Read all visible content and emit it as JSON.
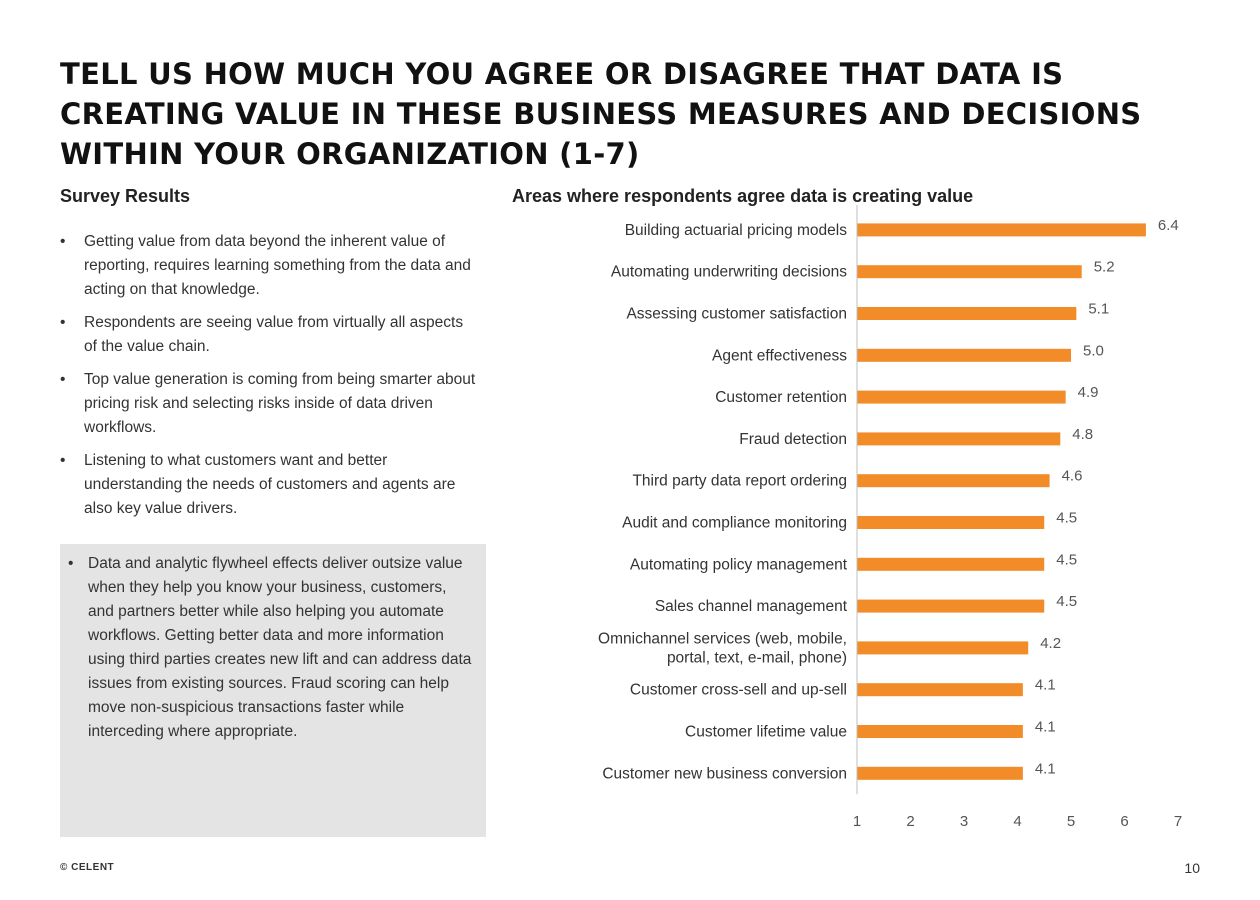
{
  "title": "TELL US HOW MUCH YOU AGREE OR DISAGREE THAT DATA IS CREATING VALUE IN THESE BUSINESS MEASURES AND DECISIONS WITHIN YOUR ORGANIZATION (1-7)",
  "survey": {
    "heading": "Survey Results",
    "bullets": [
      "Getting value from data beyond the inherent value of reporting, requires learning something from the data and acting on that knowledge.",
      "Respondents are seeing value from virtually all aspects of the value chain.",
      "Top value generation is coming from being smarter about pricing risk and selecting risks inside of data driven workflows.",
      "Listening to what customers want and better understanding the needs of customers and agents are also key value drivers."
    ],
    "callout": "Data and analytic flywheel effects deliver outsize value when they help you know your business, customers, and partners better while also helping you automate workflows. Getting better data and more information using third parties creates new lift and can address data issues from existing sources. Fraud scoring can help move non-suspicious transactions faster while interceding where appropriate."
  },
  "footer": {
    "copyright": "© CELENT",
    "page_number": "10"
  },
  "chart_data": {
    "type": "bar",
    "orientation": "horizontal",
    "title": "Areas where respondents agree data is creating value",
    "categories": [
      "Building actuarial pricing models",
      "Automating underwriting decisions",
      "Assessing customer satisfaction",
      "Agent effectiveness",
      "Customer retention",
      "Fraud detection",
      "Third party data report ordering",
      "Audit and compliance monitoring",
      "Automating policy management",
      "Sales channel management",
      "Omnichannel services (web, mobile, portal, text, e-mail, phone)",
      "Customer cross-sell and up-sell",
      "Customer lifetime value",
      "Customer new business conversion"
    ],
    "category_lines": [
      [
        "Building actuarial pricing models"
      ],
      [
        "Automating underwriting decisions"
      ],
      [
        "Assessing customer satisfaction"
      ],
      [
        "Agent effectiveness"
      ],
      [
        "Customer retention"
      ],
      [
        "Fraud detection"
      ],
      [
        "Third party data report ordering"
      ],
      [
        "Audit and compliance monitoring"
      ],
      [
        "Automating policy management"
      ],
      [
        "Sales channel management"
      ],
      [
        "Omnichannel services (web, mobile,",
        "portal, text, e-mail, phone)"
      ],
      [
        "Customer cross-sell and up-sell"
      ],
      [
        "Customer lifetime value"
      ],
      [
        "Customer new business conversion"
      ]
    ],
    "values": [
      6.4,
      5.2,
      5.1,
      5.0,
      4.9,
      4.8,
      4.6,
      4.5,
      4.5,
      4.5,
      4.2,
      4.1,
      4.1,
      4.1
    ],
    "value_labels": [
      "6.4",
      "5.2",
      "5.1",
      "5.0",
      "4.9",
      "4.8",
      "4.6",
      "4.5",
      "4.5",
      "4.5",
      "4.2",
      "4.1",
      "4.1",
      "4.1"
    ],
    "xlim": [
      1,
      7
    ],
    "xticks": [
      1,
      2,
      3,
      4,
      5,
      6,
      7
    ],
    "grid": false,
    "legend": "none",
    "bar_color": "#f28c28"
  }
}
